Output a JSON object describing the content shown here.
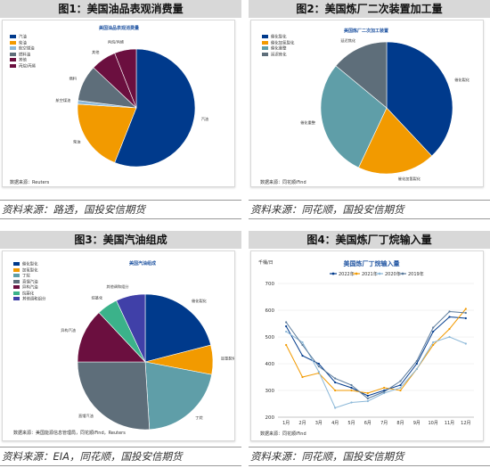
{
  "colors": {
    "dark_blue": "#003A8C",
    "orange": "#F29A00",
    "light_blue": "#8CB8D8",
    "slate": "#5E6E7A",
    "maroon": "#6B0F3F",
    "teal": "#5F9EA8",
    "green": "#3BB28A",
    "purple": "#4040A8",
    "steel": "#5B7B9C"
  },
  "panel1": {
    "header": "图1：美国油品表观消费量",
    "source_note": "资料来源：路透，国投安信期货"
  },
  "panel2": {
    "header": "图2：美国炼厂二次装置加工量",
    "source_note": "资料来源：同花顺，国投安信期货"
  },
  "panel3": {
    "header": "图3：美国汽油组成",
    "source_note": "资料来源：EIA，同花顺，国投安信期货"
  },
  "panel4": {
    "header": "图4：美国炼厂丁烷输入量",
    "source_note": "资料来源：同花顺，国投安信期货"
  },
  "chart_data": [
    {
      "type": "pie",
      "title": "美国油品表观消费量",
      "source": "数据来源：Reuters",
      "labels": [
        "汽油",
        "柴油",
        "航空煤油",
        "燃料油",
        "其他",
        "丙烷/丙烯"
      ],
      "values": [
        56,
        20,
        1,
        10,
        7,
        6
      ],
      "slice_labels": [
        "汽油",
        "柴油",
        "航空煤油",
        "燃料",
        "其他",
        "丙烷/丙烯"
      ],
      "colors": [
        "#003A8C",
        "#F29A00",
        "#8CB8D8",
        "#5E6E7A",
        "#6B0F3F",
        "#6B0F3F"
      ]
    },
    {
      "type": "pie",
      "title": "美国炼厂二次加工装置",
      "source": "数据来源：同花顺iFind",
      "labels": [
        "催化裂化",
        "催化加氢裂化",
        "催化重整",
        "延迟焦化"
      ],
      "values": [
        38,
        19,
        29,
        14
      ],
      "slice_labels": [
        "催化裂化",
        "催化加氢裂化",
        "催化重整",
        "延迟焦化"
      ],
      "colors": [
        "#003A8C",
        "#F29A00",
        "#5F9EA8",
        "#5E6E7A"
      ]
    },
    {
      "type": "pie",
      "title": "美国汽油组成",
      "source": "数据来源：美国能源信息管理局，同花顺iFind，Reuters",
      "labels": [
        "催化裂化",
        "加氢裂化",
        "丁烷",
        "直馏汽油",
        "异构汽油",
        "烷基化",
        "其他调和组分"
      ],
      "values": [
        21,
        7,
        21,
        26,
        13,
        5,
        7
      ],
      "slice_labels": [
        "催化裂化",
        "加氢裂化",
        "丁烷",
        "直馏汽油",
        "异构汽油",
        "烷基化",
        "其他调和组分"
      ],
      "colors": [
        "#003A8C",
        "#F29A00",
        "#5F9EA8",
        "#5E6E7A",
        "#6B0F3F",
        "#3BB28A",
        "#4040A8"
      ]
    },
    {
      "type": "line",
      "title": "美国炼厂丁烷输入量",
      "ylabel": "千桶/日",
      "source": "数据来源：同花顺iFind",
      "categories": [
        "1月",
        "2月",
        "3月",
        "4月",
        "5月",
        "6月",
        "7月",
        "8月",
        "9月",
        "10月",
        "11月",
        "12月"
      ],
      "ylim": [
        200,
        700
      ],
      "yticks": [
        200,
        300,
        400,
        500,
        600,
        700
      ],
      "series": [
        {
          "name": "2022年",
          "color": "#003A8C",
          "marker": "diamond",
          "values": [
            540,
            430,
            400,
            330,
            310,
            280,
            300,
            320,
            400,
            520,
            575,
            570
          ]
        },
        {
          "name": "2021年",
          "color": "#F29A00",
          "marker": "square",
          "values": [
            470,
            350,
            365,
            300,
            300,
            290,
            310,
            300,
            380,
            470,
            530,
            605
          ]
        },
        {
          "name": "2020年",
          "color": "#8CB8D8",
          "marker": "triangle",
          "values": [
            520,
            480,
            370,
            235,
            255,
            260,
            290,
            310,
            380,
            480,
            500,
            475
          ]
        },
        {
          "name": "2019年",
          "color": "#5B7B9C",
          "marker": "x",
          "values": [
            555,
            470,
            390,
            345,
            320,
            270,
            295,
            335,
            410,
            535,
            595,
            590
          ]
        }
      ]
    }
  ]
}
